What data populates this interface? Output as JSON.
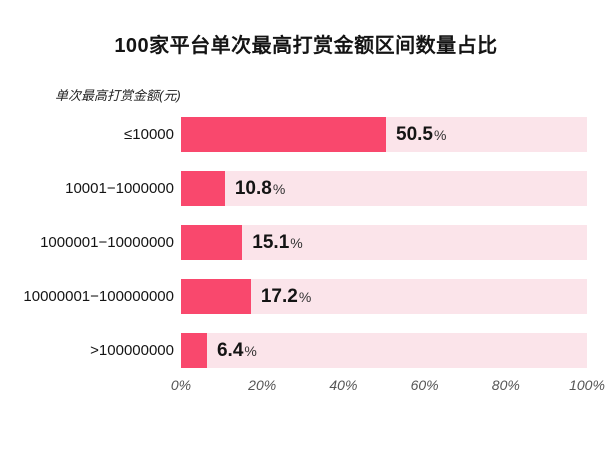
{
  "page": {
    "background": "#ffffff"
  },
  "chart_data": {
    "type": "bar",
    "orientation": "horizontal",
    "title": "100家平台单次最高打赏金额区间数量占比",
    "axis_label": "单次最高打赏金额(元)",
    "categories": [
      "≤10000",
      "10001−1000000",
      "1000001−10000000",
      "10000001−100000000",
      ">100000000"
    ],
    "values": [
      50.5,
      10.8,
      15.1,
      17.2,
      6.4
    ],
    "value_suffix": "%",
    "x_ticks": [
      "0%",
      "20%",
      "40%",
      "60%",
      "80%",
      "100%"
    ],
    "xlim": [
      0,
      100
    ],
    "bar_color": "#f9486d",
    "track_color": "#fbe4ea",
    "grid": false,
    "legend": "none"
  }
}
